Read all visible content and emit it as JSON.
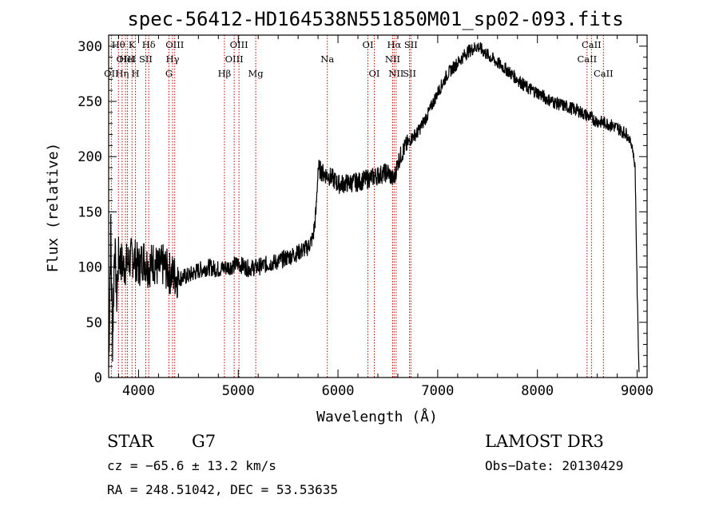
{
  "chart_data": {
    "type": "line",
    "title": "spec-56412-HD164538N551850M01_sp02-093.fits",
    "xlabel": "Wavelength (Å)",
    "ylabel": "Flux (relative)",
    "xlim": [
      3700,
      9100
    ],
    "ylim": [
      0,
      310
    ],
    "x_ticks": [
      4000,
      5000,
      6000,
      7000,
      8000,
      9000
    ],
    "y_ticks": [
      0,
      50,
      100,
      150,
      200,
      250,
      300
    ],
    "series": [
      {
        "x": [
          3700,
          3720,
          3740,
          3760,
          3780,
          3800,
          3850,
          3900,
          3950,
          4000,
          4050,
          4100,
          4150,
          4200,
          4250,
          4300,
          4350,
          4400,
          4500,
          4600,
          4700,
          4800,
          4900,
          5000,
          5100,
          5200,
          5300,
          5400,
          5500,
          5600,
          5700,
          5750,
          5780,
          5800,
          5850,
          5900,
          5950,
          6000,
          6100,
          6200,
          6300,
          6400,
          6500,
          6560,
          6600,
          6650,
          6700,
          6750,
          6800,
          6900,
          7000,
          7100,
          7200,
          7300,
          7400,
          7500,
          7600,
          7700,
          7800,
          7900,
          8000,
          8100,
          8200,
          8300,
          8400,
          8500,
          8600,
          8700,
          8800,
          8900,
          8950,
          8980,
          9000,
          9020
        ],
        "y": [
          10,
          130,
          35,
          125,
          70,
          110,
          100,
          105,
          110,
          100,
          108,
          100,
          105,
          98,
          102,
          95,
          93,
          90,
          92,
          97,
          100,
          98,
          100,
          103,
          99,
          100,
          103,
          105,
          109,
          113,
          118,
          127,
          150,
          190,
          185,
          183,
          180,
          175,
          176,
          177,
          180,
          183,
          186,
          178,
          195,
          205,
          212,
          218,
          222,
          238,
          258,
          275,
          285,
          295,
          300,
          292,
          285,
          278,
          270,
          262,
          258,
          252,
          248,
          245,
          242,
          237,
          232,
          230,
          226,
          220,
          210,
          190,
          80,
          0
        ]
      }
    ],
    "line_markers": [
      {
        "label": "OII",
        "x": 3727,
        "row": 2
      },
      {
        "label": "Hθ",
        "x": 3798,
        "row": 0
      },
      {
        "label": "OIII",
        "x": 3869,
        "row": 1
      },
      {
        "label": "Hη",
        "x": 3835,
        "row": 2
      },
      {
        "label": "HeI",
        "x": 3889,
        "row": 1
      },
      {
        "label": "K",
        "x": 3934,
        "row": 0
      },
      {
        "label": "H",
        "x": 3969,
        "row": 2
      },
      {
        "label": "SII",
        "x": 4072,
        "row": 1
      },
      {
        "label": "Hδ",
        "x": 4102,
        "row": 0
      },
      {
        "label": "G",
        "x": 4305,
        "row": 2
      },
      {
        "label": "Hγ",
        "x": 4341,
        "row": 1
      },
      {
        "label": "OIII",
        "x": 4363,
        "row": 0
      },
      {
        "label": "Hβ",
        "x": 4861,
        "row": 2
      },
      {
        "label": "OIII",
        "x": 4959,
        "row": 1
      },
      {
        "label": "OIII",
        "x": 5007,
        "row": 0
      },
      {
        "label": "Mg",
        "x": 5175,
        "row": 2
      },
      {
        "label": "Na",
        "x": 5893,
        "row": 1
      },
      {
        "label": "OI",
        "x": 6300,
        "row": 0
      },
      {
        "label": "OI",
        "x": 6364,
        "row": 2
      },
      {
        "label": "NII",
        "x": 6548,
        "row": 1
      },
      {
        "label": "Hα",
        "x": 6563,
        "row": 0
      },
      {
        "label": "NII",
        "x": 6583,
        "row": 2
      },
      {
        "label": "SII",
        "x": 6717,
        "row": 2
      },
      {
        "label": "SII",
        "x": 6731,
        "row": 0
      },
      {
        "label": "CaII",
        "x": 8498,
        "row": 1
      },
      {
        "label": "CaII",
        "x": 8542,
        "row": 0
      },
      {
        "label": "CaII",
        "x": 8662,
        "row": 2
      }
    ]
  },
  "footer": {
    "class_text": "STAR",
    "subclass_text": "G7",
    "survey_text": "LAMOST DR3",
    "cz_text": "cz = −65.6 ± 13.2 km/s",
    "obs_date_text": "Obs−Date: 20130429",
    "coords_text": "RA = 248.51042, DEC =  53.53635"
  }
}
